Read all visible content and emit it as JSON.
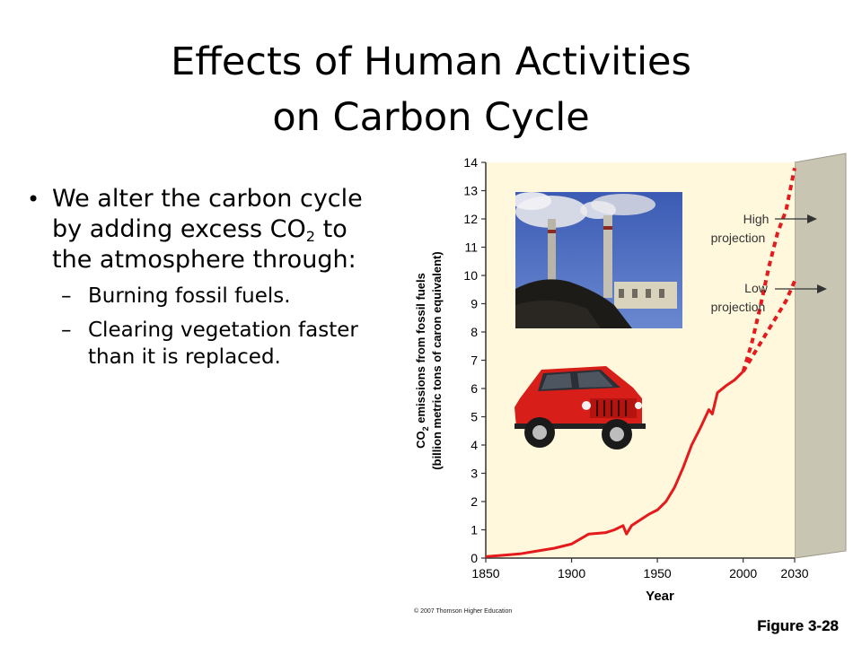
{
  "slide": {
    "title_line1": "Effects of Human Activities",
    "title_line2": "on Carbon Cycle",
    "bullet_pre": "We alter the carbon cycle by adding excess CO",
    "bullet_sub": "2",
    "bullet_post": " to the atmosphere through:",
    "sub_bullets": [
      "Burning fossil fuels.",
      "Clearing vegetation faster than it is replaced."
    ],
    "figure_label": "Figure 3-28"
  },
  "chart_data": {
    "type": "line",
    "xlabel": "Year",
    "ylabel_line1_pre": "CO",
    "ylabel_line1_sub": "2",
    "ylabel_line1_post": " emissions from fossil fuels",
    "ylabel_line2": "(billion metric tons of caron equivalent)",
    "xlim": [
      1850,
      2030
    ],
    "ylim": [
      0,
      14
    ],
    "x_ticks": [
      "1850",
      "1900",
      "1950",
      "2000",
      "2030"
    ],
    "y_ticks": [
      "0",
      "1",
      "2",
      "3",
      "4",
      "5",
      "6",
      "7",
      "8",
      "9",
      "10",
      "11",
      "12",
      "13",
      "14"
    ],
    "grid": false,
    "copyright": "© 2007 Thomson Higher Education",
    "colors": {
      "line": "#e41a1c",
      "plot_bg": "#fff8dc",
      "panel_side": "#c9c5b3"
    },
    "annotations": [
      {
        "line1": "High",
        "line2": "projection"
      },
      {
        "line1": "Low",
        "line2": "projection"
      }
    ],
    "series": [
      {
        "style": "solid",
        "x": [
          1850,
          1860,
          1870,
          1880,
          1890,
          1900,
          1910,
          1920,
          1925,
          1930,
          1932,
          1935,
          1940,
          1945,
          1950,
          1955,
          1960,
          1965,
          1970,
          1975,
          1980,
          1982,
          1985,
          1990,
          1995,
          2000
        ],
        "y": [
          0.05,
          0.1,
          0.15,
          0.25,
          0.35,
          0.5,
          0.85,
          0.9,
          1.0,
          1.15,
          0.85,
          1.15,
          1.35,
          1.55,
          1.7,
          2.0,
          2.5,
          3.2,
          4.0,
          4.6,
          5.25,
          5.1,
          5.85,
          6.1,
          6.3,
          6.6
        ]
      },
      {
        "style": "dashed",
        "x": [
          2000,
          2005,
          2010,
          2015,
          2020,
          2025,
          2030
        ],
        "y": [
          6.6,
          7.6,
          8.9,
          10.3,
          11.5,
          12.3,
          13.8
        ]
      },
      {
        "style": "dashed",
        "x": [
          2000,
          2005,
          2010,
          2015,
          2020,
          2025,
          2030
        ],
        "y": [
          6.6,
          7.1,
          7.6,
          8.1,
          8.6,
          9.1,
          9.8
        ]
      }
    ]
  }
}
